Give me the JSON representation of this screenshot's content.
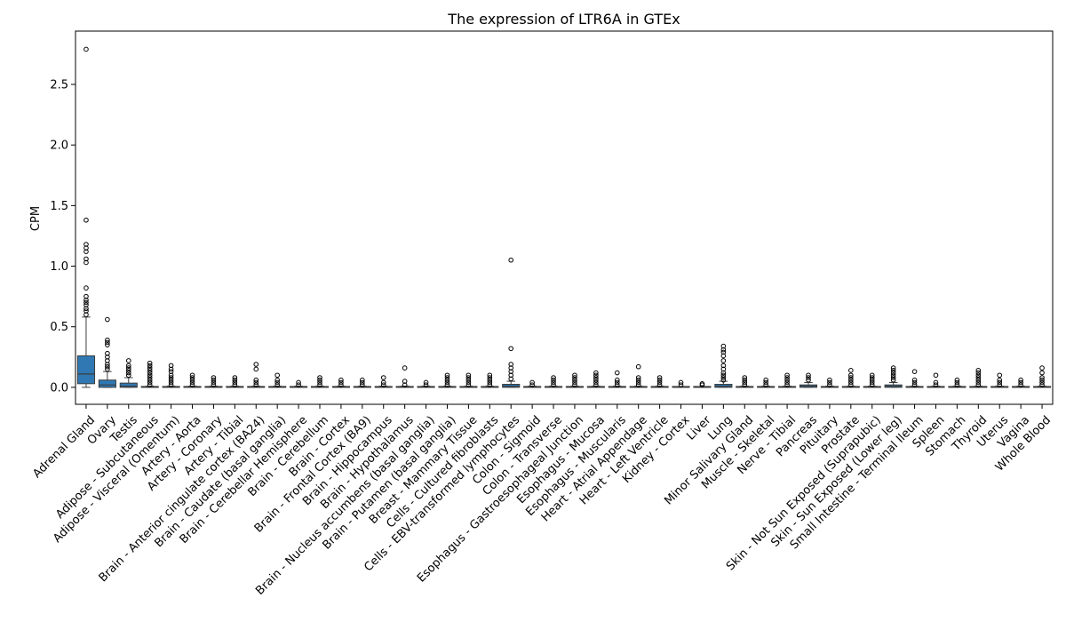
{
  "chart_data": {
    "type": "box",
    "title": "The expression of LTR6A in GTEx",
    "xlabel": "",
    "ylabel": "CPM",
    "ylim": [
      -0.14,
      2.94
    ],
    "yticks": [
      0.0,
      0.5,
      1.0,
      1.5,
      2.0,
      2.5
    ],
    "ytick_labels": [
      "0.0",
      "0.5",
      "1.0",
      "1.5",
      "2.0",
      "2.5"
    ],
    "grid": false,
    "legend": false,
    "box_color": "#2f78b4",
    "categories": [
      "Adrenal Gland",
      "Ovary",
      "Testis",
      "Adipose - Subcutaneous",
      "Adipose - Visceral (Omentum)",
      "Artery - Aorta",
      "Artery - Coronary",
      "Artery - Tibial",
      "Brain - Anterior cingulate cortex (BA24)",
      "Brain - Caudate (basal ganglia)",
      "Brain - Cerebellar Hemisphere",
      "Brain - Cerebellum",
      "Brain - Cortex",
      "Brain - Frontal Cortex (BA9)",
      "Brain - Hippocampus",
      "Brain - Hypothalamus",
      "Brain - Nucleus accumbens (basal ganglia)",
      "Brain - Putamen (basal ganglia)",
      "Breast - Mammary Tissue",
      "Cells - Cultured fibroblasts",
      "Cells - EBV-transformed lymphocytes",
      "Colon - Sigmoid",
      "Colon - Transverse",
      "Esophagus - Gastroesophageal Junction",
      "Esophagus - Mucosa",
      "Esophagus - Muscularis",
      "Heart - Atrial Appendage",
      "Heart - Left Ventricle",
      "Kidney - Cortex",
      "Liver",
      "Lung",
      "Minor Salivary Gland",
      "Muscle - Skeletal",
      "Nerve - Tibial",
      "Pancreas",
      "Pituitary",
      "Prostate",
      "Skin - Not Sun Exposed (Suprapubic)",
      "Skin - Sun Exposed (Lower leg)",
      "Small Intestine - Terminal Ileum",
      "Spleen",
      "Stomach",
      "Thyroid",
      "Uterus",
      "Vagina",
      "Whole Blood"
    ],
    "boxes": [
      {
        "q1": 0.03,
        "median": 0.11,
        "q3": 0.26,
        "wlo": 0.0,
        "whi": 0.58,
        "outliers": [
          0.6,
          0.63,
          0.65,
          0.68,
          0.7,
          0.72,
          0.75,
          0.82,
          1.03,
          1.06,
          1.12,
          1.15,
          1.18,
          1.38,
          2.79
        ]
      },
      {
        "q1": 0.0,
        "median": 0.02,
        "q3": 0.06,
        "wlo": 0.0,
        "whi": 0.13,
        "outliers": [
          0.15,
          0.17,
          0.19,
          0.22,
          0.25,
          0.28,
          0.35,
          0.37,
          0.39,
          0.56
        ]
      },
      {
        "q1": 0.0,
        "median": 0.01,
        "q3": 0.035,
        "wlo": 0.0,
        "whi": 0.08,
        "outliers": [
          0.1,
          0.12,
          0.14,
          0.16,
          0.18,
          0.22
        ]
      },
      {
        "q1": 0.0,
        "median": 0.0,
        "q3": 0.005,
        "wlo": 0.0,
        "whi": 0.01,
        "outliers": [
          0.02,
          0.04,
          0.06,
          0.08,
          0.1,
          0.12,
          0.14,
          0.16,
          0.18,
          0.2
        ]
      },
      {
        "q1": 0.0,
        "median": 0.0,
        "q3": 0.005,
        "wlo": 0.0,
        "whi": 0.01,
        "outliers": [
          0.02,
          0.04,
          0.06,
          0.08,
          0.1,
          0.13,
          0.15,
          0.18
        ]
      },
      {
        "q1": 0.0,
        "median": 0.0,
        "q3": 0.005,
        "wlo": 0.0,
        "whi": 0.01,
        "outliers": [
          0.02,
          0.04,
          0.06,
          0.08,
          0.1
        ]
      },
      {
        "q1": 0.0,
        "median": 0.0,
        "q3": 0.005,
        "wlo": 0.0,
        "whi": 0.01,
        "outliers": [
          0.02,
          0.04,
          0.06,
          0.08
        ]
      },
      {
        "q1": 0.0,
        "median": 0.0,
        "q3": 0.005,
        "wlo": 0.0,
        "whi": 0.01,
        "outliers": [
          0.02,
          0.04,
          0.06,
          0.08
        ]
      },
      {
        "q1": 0.0,
        "median": 0.0,
        "q3": 0.005,
        "wlo": 0.0,
        "whi": 0.01,
        "outliers": [
          0.02,
          0.04,
          0.06,
          0.15,
          0.19
        ]
      },
      {
        "q1": 0.0,
        "median": 0.0,
        "q3": 0.005,
        "wlo": 0.0,
        "whi": 0.01,
        "outliers": [
          0.02,
          0.04,
          0.06,
          0.1
        ]
      },
      {
        "q1": 0.0,
        "median": 0.0,
        "q3": 0.005,
        "wlo": 0.0,
        "whi": 0.01,
        "outliers": [
          0.02,
          0.04
        ]
      },
      {
        "q1": 0.0,
        "median": 0.0,
        "q3": 0.005,
        "wlo": 0.0,
        "whi": 0.01,
        "outliers": [
          0.02,
          0.04,
          0.06,
          0.08
        ]
      },
      {
        "q1": 0.0,
        "median": 0.0,
        "q3": 0.005,
        "wlo": 0.0,
        "whi": 0.01,
        "outliers": [
          0.02,
          0.04,
          0.06
        ]
      },
      {
        "q1": 0.0,
        "median": 0.0,
        "q3": 0.005,
        "wlo": 0.0,
        "whi": 0.01,
        "outliers": [
          0.02,
          0.04,
          0.06
        ]
      },
      {
        "q1": 0.0,
        "median": 0.0,
        "q3": 0.005,
        "wlo": 0.0,
        "whi": 0.01,
        "outliers": [
          0.02,
          0.04,
          0.08
        ]
      },
      {
        "q1": 0.0,
        "median": 0.0,
        "q3": 0.005,
        "wlo": 0.0,
        "whi": 0.01,
        "outliers": [
          0.02,
          0.05,
          0.16
        ]
      },
      {
        "q1": 0.0,
        "median": 0.0,
        "q3": 0.005,
        "wlo": 0.0,
        "whi": 0.01,
        "outliers": [
          0.02,
          0.04
        ]
      },
      {
        "q1": 0.0,
        "median": 0.0,
        "q3": 0.005,
        "wlo": 0.0,
        "whi": 0.01,
        "outliers": [
          0.02,
          0.04,
          0.06,
          0.08,
          0.1
        ]
      },
      {
        "q1": 0.0,
        "median": 0.0,
        "q3": 0.005,
        "wlo": 0.0,
        "whi": 0.01,
        "outliers": [
          0.02,
          0.04,
          0.06,
          0.08,
          0.1
        ]
      },
      {
        "q1": 0.0,
        "median": 0.0,
        "q3": 0.005,
        "wlo": 0.0,
        "whi": 0.01,
        "outliers": [
          0.02,
          0.04,
          0.06,
          0.08,
          0.1
        ]
      },
      {
        "q1": 0.0,
        "median": 0.01,
        "q3": 0.025,
        "wlo": 0.0,
        "whi": 0.05,
        "outliers": [
          0.07,
          0.1,
          0.13,
          0.16,
          0.19,
          0.32,
          1.05
        ]
      },
      {
        "q1": 0.0,
        "median": 0.0,
        "q3": 0.005,
        "wlo": 0.0,
        "whi": 0.01,
        "outliers": [
          0.02,
          0.04
        ]
      },
      {
        "q1": 0.0,
        "median": 0.0,
        "q3": 0.005,
        "wlo": 0.0,
        "whi": 0.01,
        "outliers": [
          0.02,
          0.04,
          0.06,
          0.08
        ]
      },
      {
        "q1": 0.0,
        "median": 0.0,
        "q3": 0.005,
        "wlo": 0.0,
        "whi": 0.01,
        "outliers": [
          0.02,
          0.04,
          0.06,
          0.08,
          0.1
        ]
      },
      {
        "q1": 0.0,
        "median": 0.0,
        "q3": 0.005,
        "wlo": 0.0,
        "whi": 0.01,
        "outliers": [
          0.02,
          0.04,
          0.06,
          0.08,
          0.1,
          0.12
        ]
      },
      {
        "q1": 0.0,
        "median": 0.0,
        "q3": 0.005,
        "wlo": 0.0,
        "whi": 0.01,
        "outliers": [
          0.02,
          0.04,
          0.06,
          0.12
        ]
      },
      {
        "q1": 0.0,
        "median": 0.0,
        "q3": 0.005,
        "wlo": 0.0,
        "whi": 0.01,
        "outliers": [
          0.02,
          0.04,
          0.06,
          0.08,
          0.17
        ]
      },
      {
        "q1": 0.0,
        "median": 0.0,
        "q3": 0.005,
        "wlo": 0.0,
        "whi": 0.01,
        "outliers": [
          0.02,
          0.04,
          0.06,
          0.08
        ]
      },
      {
        "q1": 0.0,
        "median": 0.0,
        "q3": 0.002,
        "wlo": 0.0,
        "whi": 0.005,
        "outliers": [
          0.02,
          0.04
        ]
      },
      {
        "q1": 0.0,
        "median": 0.0,
        "q3": 0.002,
        "wlo": 0.0,
        "whi": 0.005,
        "outliers": [
          0.02,
          0.03
        ]
      },
      {
        "q1": 0.0,
        "median": 0.01,
        "q3": 0.025,
        "wlo": 0.0,
        "whi": 0.05,
        "outliers": [
          0.06,
          0.08,
          0.1,
          0.12,
          0.15,
          0.18,
          0.22,
          0.26,
          0.29,
          0.31,
          0.34
        ]
      },
      {
        "q1": 0.0,
        "median": 0.0,
        "q3": 0.005,
        "wlo": 0.0,
        "whi": 0.01,
        "outliers": [
          0.02,
          0.04,
          0.06,
          0.08
        ]
      },
      {
        "q1": 0.0,
        "median": 0.0,
        "q3": 0.005,
        "wlo": 0.0,
        "whi": 0.01,
        "outliers": [
          0.02,
          0.04,
          0.06
        ]
      },
      {
        "q1": 0.0,
        "median": 0.0,
        "q3": 0.005,
        "wlo": 0.0,
        "whi": 0.01,
        "outliers": [
          0.02,
          0.04,
          0.06,
          0.08,
          0.1
        ]
      },
      {
        "q1": 0.0,
        "median": 0.01,
        "q3": 0.02,
        "wlo": 0.0,
        "whi": 0.04,
        "outliers": [
          0.06,
          0.08,
          0.1
        ]
      },
      {
        "q1": 0.0,
        "median": 0.0,
        "q3": 0.005,
        "wlo": 0.0,
        "whi": 0.01,
        "outliers": [
          0.02,
          0.04,
          0.06
        ]
      },
      {
        "q1": 0.0,
        "median": 0.0,
        "q3": 0.005,
        "wlo": 0.0,
        "whi": 0.01,
        "outliers": [
          0.02,
          0.04,
          0.06,
          0.08,
          0.1,
          0.14
        ]
      },
      {
        "q1": 0.0,
        "median": 0.0,
        "q3": 0.005,
        "wlo": 0.0,
        "whi": 0.01,
        "outliers": [
          0.02,
          0.04,
          0.06,
          0.08,
          0.1
        ]
      },
      {
        "q1": 0.0,
        "median": 0.01,
        "q3": 0.02,
        "wlo": 0.0,
        "whi": 0.04,
        "outliers": [
          0.06,
          0.08,
          0.1,
          0.12,
          0.14,
          0.16
        ]
      },
      {
        "q1": 0.0,
        "median": 0.0,
        "q3": 0.005,
        "wlo": 0.0,
        "whi": 0.01,
        "outliers": [
          0.02,
          0.04,
          0.06,
          0.13
        ]
      },
      {
        "q1": 0.0,
        "median": 0.0,
        "q3": 0.005,
        "wlo": 0.0,
        "whi": 0.01,
        "outliers": [
          0.02,
          0.04,
          0.1
        ]
      },
      {
        "q1": 0.0,
        "median": 0.0,
        "q3": 0.005,
        "wlo": 0.0,
        "whi": 0.01,
        "outliers": [
          0.02,
          0.04,
          0.06
        ]
      },
      {
        "q1": 0.0,
        "median": 0.0,
        "q3": 0.005,
        "wlo": 0.0,
        "whi": 0.01,
        "outliers": [
          0.02,
          0.04,
          0.06,
          0.08,
          0.1,
          0.12,
          0.14
        ]
      },
      {
        "q1": 0.0,
        "median": 0.0,
        "q3": 0.005,
        "wlo": 0.0,
        "whi": 0.01,
        "outliers": [
          0.02,
          0.04,
          0.06,
          0.1
        ]
      },
      {
        "q1": 0.0,
        "median": 0.0,
        "q3": 0.005,
        "wlo": 0.0,
        "whi": 0.01,
        "outliers": [
          0.02,
          0.04,
          0.06
        ]
      },
      {
        "q1": 0.0,
        "median": 0.0,
        "q3": 0.005,
        "wlo": 0.0,
        "whi": 0.01,
        "outliers": [
          0.02,
          0.04,
          0.06,
          0.08,
          0.12,
          0.16
        ]
      }
    ]
  }
}
